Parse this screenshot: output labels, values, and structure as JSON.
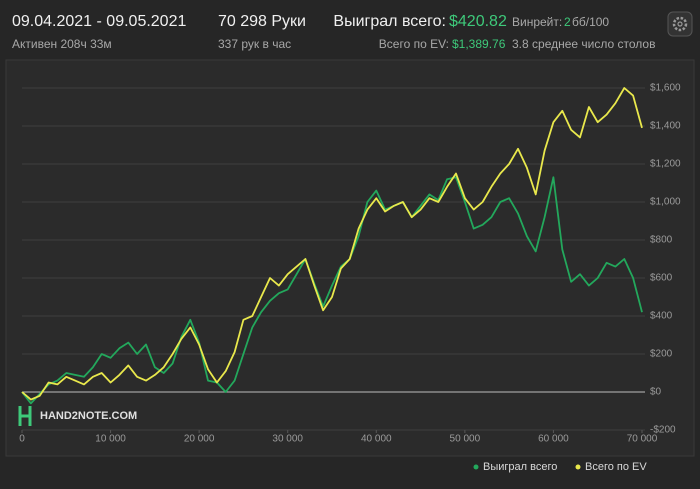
{
  "header": {
    "date_range": "09.04.2021 - 09.05.2021",
    "active": "Активен 208ч 33м",
    "hands": "70 298 Руки",
    "hands_per_hour": "337 рук в час",
    "won_label": "Выиграл всего:",
    "won_value": "$420.82",
    "ev_label": "Всего по EV:",
    "ev_value": "$1,389.76",
    "winrate_label": "Винрейт:",
    "winrate_value": "2",
    "winrate_unit": "бб/100",
    "tables": "3.8 среднее число столов",
    "watermark": "HAND2NOTE.COM"
  },
  "chart_data": {
    "type": "line",
    "x": [
      0,
      1000,
      2000,
      3000,
      4000,
      5000,
      6000,
      7000,
      8000,
      9000,
      10000,
      11000,
      12000,
      13000,
      14000,
      15000,
      16000,
      17000,
      18000,
      19000,
      20000,
      21000,
      22000,
      23000,
      24000,
      25000,
      26000,
      27000,
      28000,
      29000,
      30000,
      31000,
      32000,
      33000,
      34000,
      35000,
      36000,
      37000,
      38000,
      39000,
      40000,
      41000,
      42000,
      43000,
      44000,
      45000,
      46000,
      47000,
      48000,
      49000,
      50000,
      51000,
      52000,
      53000,
      54000,
      55000,
      56000,
      57000,
      58000,
      59000,
      60000,
      61000,
      62000,
      63000,
      64000,
      65000,
      66000,
      67000,
      68000,
      69000,
      70000
    ],
    "series": [
      {
        "name": "Выиграл всего",
        "color": "#23a85c",
        "values": [
          0,
          -60,
          -10,
          40,
          60,
          100,
          90,
          80,
          130,
          200,
          180,
          230,
          260,
          200,
          250,
          130,
          100,
          150,
          290,
          380,
          260,
          60,
          50,
          0,
          60,
          200,
          340,
          420,
          480,
          520,
          540,
          620,
          700,
          570,
          450,
          560,
          660,
          700,
          820,
          1000,
          1060,
          960,
          980,
          1000,
          920,
          980,
          1040,
          1010,
          1120,
          1130,
          1000,
          860,
          880,
          920,
          1000,
          1020,
          940,
          820,
          740,
          920,
          1130,
          750,
          580,
          620,
          560,
          600,
          680,
          660,
          700,
          600,
          420
        ]
      },
      {
        "name": "Всего по EV",
        "color": "#e9e84c",
        "values": [
          0,
          -40,
          -20,
          50,
          40,
          80,
          60,
          40,
          80,
          100,
          50,
          90,
          140,
          80,
          60,
          90,
          130,
          200,
          280,
          340,
          250,
          120,
          50,
          110,
          210,
          380,
          400,
          500,
          600,
          560,
          620,
          660,
          700,
          560,
          430,
          500,
          650,
          700,
          860,
          960,
          1020,
          950,
          980,
          1000,
          920,
          960,
          1020,
          1000,
          1080,
          1150,
          1020,
          960,
          1000,
          1080,
          1150,
          1200,
          1280,
          1180,
          1040,
          1270,
          1420,
          1480,
          1380,
          1340,
          1500,
          1420,
          1460,
          1520,
          1600,
          1560,
          1390
        ]
      }
    ],
    "xlim": [
      0,
      70000
    ],
    "xticks": [
      0,
      {
        "value": 10000,
        "label": "10 000"
      },
      {
        "value": 20000,
        "label": "20 000"
      },
      {
        "value": 30000,
        "label": "30 000"
      },
      {
        "value": 40000,
        "label": "40 000"
      },
      {
        "value": 50000,
        "label": "50 000"
      },
      {
        "value": 60000,
        "label": "60 000"
      },
      {
        "value": 70000,
        "label": "70 000"
      }
    ],
    "ylim": [
      -200,
      1700
    ],
    "yticks": [
      {
        "value": -200,
        "label": "-$200"
      },
      {
        "value": 0,
        "label": "$0"
      },
      {
        "value": 200,
        "label": "$200"
      },
      {
        "value": 400,
        "label": "$400"
      },
      {
        "value": 600,
        "label": "$600"
      },
      {
        "value": 800,
        "label": "$800"
      },
      {
        "value": 1000,
        "label": "$1,000"
      },
      {
        "value": 1200,
        "label": "$1,200"
      },
      {
        "value": 1400,
        "label": "$1,400"
      },
      {
        "value": 1600,
        "label": "$1,600"
      }
    ],
    "grid": true
  }
}
